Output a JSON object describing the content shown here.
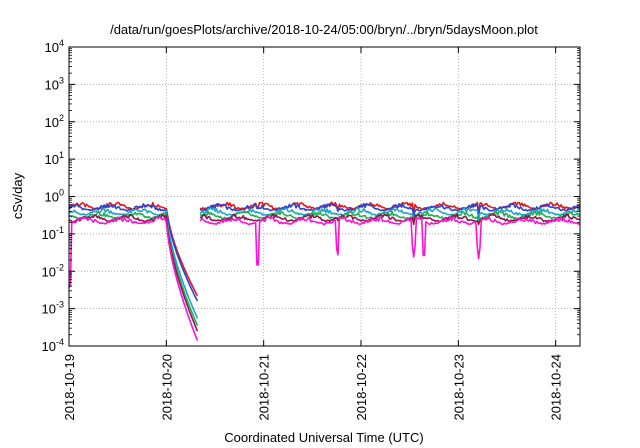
{
  "chart_data": {
    "type": "line",
    "title": "/data/run/goesPlots/archive/2018-10-24/05:00/bryn/../bryn/5daysMoon.plot",
    "xlabel": "Coordinated Universal Time (UTC)",
    "ylabel": "cSv/day",
    "yscale": "log",
    "ylim": [
      0.0001,
      10000
    ],
    "xlim": [
      "2018-10-19T00:00",
      "2018-10-24T06:00"
    ],
    "grid": true,
    "legend": "none",
    "y_ticks": [
      {
        "value": 0.0001,
        "base": "10",
        "exp": "-4"
      },
      {
        "value": 0.001,
        "base": "10",
        "exp": "-3"
      },
      {
        "value": 0.01,
        "base": "10",
        "exp": "-2"
      },
      {
        "value": 0.1,
        "base": "10",
        "exp": "-1"
      },
      {
        "value": 1,
        "base": "10",
        "exp": "0"
      },
      {
        "value": 10,
        "base": "10",
        "exp": "1"
      },
      {
        "value": 100,
        "base": "10",
        "exp": "2"
      },
      {
        "value": 1000,
        "base": "10",
        "exp": "3"
      },
      {
        "value": 10000,
        "base": "10",
        "exp": "4"
      }
    ],
    "x_ticks": [
      {
        "value": "2018-10-19T00:00",
        "label": "2018-10-19"
      },
      {
        "value": "2018-10-20T00:00",
        "label": "2018-10-20"
      },
      {
        "value": "2018-10-21T00:00",
        "label": "2018-10-21"
      },
      {
        "value": "2018-10-22T00:00",
        "label": "2018-10-22"
      },
      {
        "value": "2018-10-23T00:00",
        "label": "2018-10-23"
      },
      {
        "value": "2018-10-24T00:00",
        "label": "2018-10-24"
      }
    ],
    "data_gap": [
      "2018-10-20T07:45",
      "2018-10-20T08:10"
    ],
    "series": [
      {
        "color": "#e4171b",
        "base": 0.55,
        "dip_end": 0.0022,
        "spike_min": 0.35
      },
      {
        "color": "#2b43d6",
        "base": 0.5,
        "dip_end": 0.0016,
        "spike_min": 0.32
      },
      {
        "color": "#18a7c4",
        "base": 0.38,
        "dip_end": 0.00055,
        "spike_min": 0.26
      },
      {
        "color": "#1fae55",
        "base": 0.31,
        "dip_end": 0.00035,
        "spike_min": 0.21
      },
      {
        "color": "#8a1a4a",
        "base": 0.26,
        "dip_end": 0.00025,
        "spike_min": 0.18
      },
      {
        "color": "#ff10d8",
        "base": 0.22,
        "dip_end": 0.00014,
        "spike_min": 0.012
      }
    ],
    "dips": [
      {
        "start": "2018-10-20T00:05",
        "end": "2018-10-20T07:40"
      }
    ],
    "spikes": [
      {
        "time": "2018-10-19T00:08",
        "factor_magenta": 0.012
      },
      {
        "time": "2018-10-20T22:30",
        "factor_magenta": 0.045
      },
      {
        "time": "2018-10-21T18:15",
        "factor_magenta": 0.1
      },
      {
        "time": "2018-10-22T13:00",
        "factor_magenta": 0.11
      },
      {
        "time": "2018-10-22T15:30",
        "factor_magenta": 0.08
      },
      {
        "time": "2018-10-23T05:00",
        "factor_magenta": 0.1
      }
    ]
  }
}
